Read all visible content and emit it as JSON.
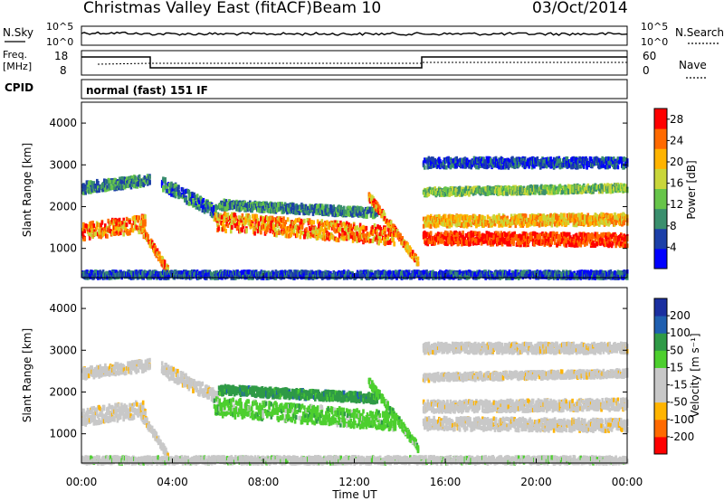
{
  "header": {
    "title": "Christmas Valley East (fitACF)",
    "beam": "Beam 10",
    "date": "03/Oct/2014"
  },
  "left_labels": {
    "nsky": "N.Sky",
    "freq": "Freq.",
    "freq_unit": "[MHz]",
    "cpid": "CPID"
  },
  "right_labels": {
    "nsearch": "N.Search",
    "nave": "Nave"
  },
  "strip_ticks": {
    "nsky_left": [
      "10^5",
      "10^0"
    ],
    "nsearch_right": [
      "10^5",
      "10^0"
    ],
    "freq_left": [
      "18",
      "8"
    ],
    "nave_right": [
      "60",
      "0"
    ]
  },
  "cpid_text": "normal (fast) 151 IF",
  "colors": {
    "trace": "#000000",
    "power_scale": [
      "#0000ff",
      "#1c3fa8",
      "#3a8f6e",
      "#67c54a",
      "#c9d63a",
      "#ffb400",
      "#ff6a00",
      "#ff0000"
    ],
    "velocity_scale": [
      "#ff0000",
      "#ff6a00",
      "#ffb400",
      "#c8c8c8",
      "#c8c8c8",
      "#4dcf2e",
      "#2f9a46",
      "#1f5fb0",
      "#1a2fa0"
    ]
  },
  "chart_data": [
    {
      "type": "heatmap",
      "panel": "power",
      "ylabel": "Slant Range [km]",
      "xlabel": "",
      "x_ticks": [
        "00:00",
        "04:00",
        "08:00",
        "12:00",
        "16:00",
        "20:00",
        "00:00"
      ],
      "y_ticks": [
        1000,
        2000,
        3000,
        4000
      ],
      "ylim": [
        300,
        4500
      ],
      "xlim_hours": [
        0,
        24
      ],
      "colorbar": {
        "label": "Power [dB]",
        "ticks": [
          4,
          8,
          12,
          16,
          20,
          24,
          28
        ],
        "range": [
          0,
          30
        ]
      }
    },
    {
      "type": "heatmap",
      "panel": "velocity",
      "ylabel": "Slant Range [km]",
      "xlabel": "Time UT",
      "x_ticks": [
        "00:00",
        "04:00",
        "08:00",
        "12:00",
        "16:00",
        "20:00",
        "00:00"
      ],
      "y_ticks": [
        1000,
        2000,
        3000,
        4000
      ],
      "ylim": [
        300,
        4500
      ],
      "xlim_hours": [
        0,
        24
      ],
      "colorbar": {
        "label": "Velocity [m s⁻¹]",
        "ticks": [
          -200,
          -100,
          -50,
          -15,
          15,
          50,
          100,
          200
        ]
      }
    }
  ]
}
